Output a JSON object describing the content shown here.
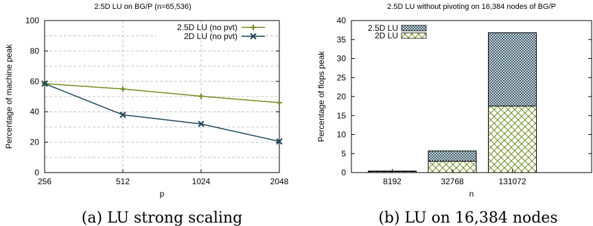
{
  "chart_data": [
    {
      "type": "line",
      "title": "2.5D LU on BG/P (n=65,536)",
      "xlabel": "p",
      "ylabel": "Percentage of machine peak",
      "x_scale": "log2",
      "x": [
        256,
        512,
        1024,
        2048
      ],
      "x_tick_labels": [
        "256",
        "512",
        "1024",
        "2048"
      ],
      "ylim": [
        0,
        100
      ],
      "y_tick_labels": [
        "0",
        "20",
        "40",
        "60",
        "80",
        "100"
      ],
      "grid": true,
      "legend_position": "top-right",
      "series": [
        {
          "name": "2.5D LU (no pvt)",
          "color": "#6e8c1e",
          "marker": "plus",
          "values": [
            58.5,
            55.0,
            50.2,
            46.0
          ]
        },
        {
          "name": "2D LU (no pvt)",
          "color": "#1d4356",
          "marker": "cross",
          "values": [
            58.5,
            38.0,
            32.0,
            20.5
          ]
        }
      ],
      "caption": "(a) LU strong scaling"
    },
    {
      "type": "bar",
      "stacked": true,
      "title": "2.5D LU without pivoting on 16,384 nodes of BG/P",
      "xlabel": "n",
      "ylabel": "Percentage of flops peak",
      "categories": [
        "8192",
        "32768",
        "131072"
      ],
      "ylim": [
        0,
        40
      ],
      "y_tick_labels": [
        "0",
        "5",
        "10",
        "15",
        "20",
        "25",
        "30",
        "35",
        "40"
      ],
      "grid": false,
      "legend_position": "top-left",
      "series": [
        {
          "name": "2D LU",
          "color": "#6e8c1e",
          "pattern": "crosshatch",
          "values": [
            0.3,
            3.0,
            17.5
          ]
        },
        {
          "name": "2.5D LU",
          "color": "#1d4356",
          "pattern": "dense-crosshatch",
          "values": [
            0.1,
            2.7,
            19.3
          ]
        }
      ],
      "caption": "(b) LU on 16,384 nodes"
    }
  ]
}
